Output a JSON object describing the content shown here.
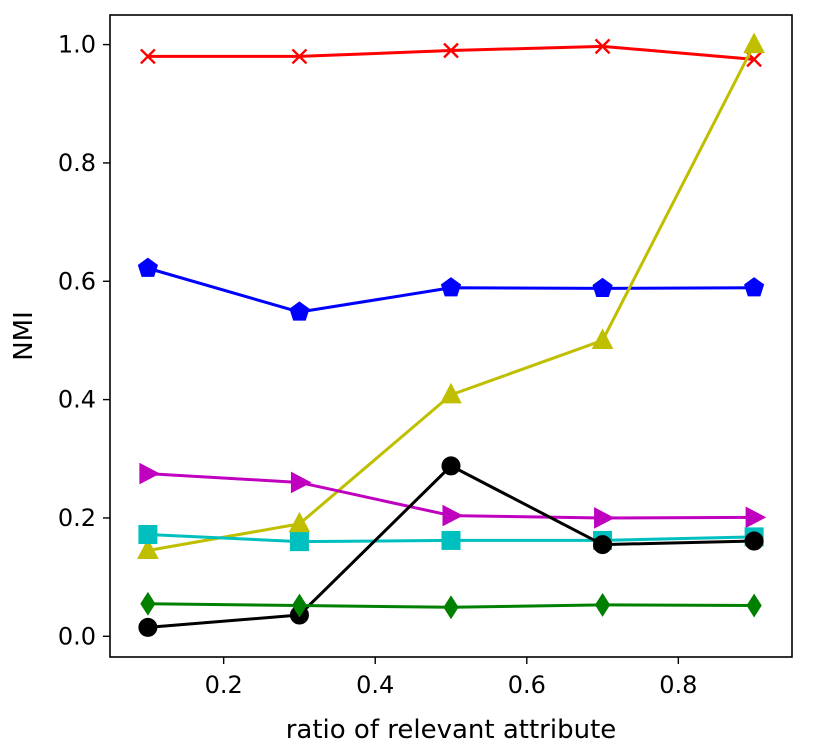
{
  "chart_data": {
    "type": "line",
    "title": "",
    "xlabel": "ratio of relevant attribute",
    "ylabel": "NMI",
    "xlim": [
      0.05,
      0.95
    ],
    "ylim": [
      -0.035,
      1.05
    ],
    "grid": false,
    "x": [
      0.1,
      0.3,
      0.5,
      0.7,
      0.9
    ],
    "xticks": [
      0.2,
      0.4,
      0.6,
      0.8
    ],
    "xtick_labels": [
      "0.2",
      "0.4",
      "0.6",
      "0.8"
    ],
    "yticks": [
      0.0,
      0.2,
      0.4,
      0.6,
      0.8,
      1.0
    ],
    "ytick_labels": [
      "0.0",
      "0.2",
      "0.4",
      "0.6",
      "0.8",
      "1.0"
    ],
    "series": [
      {
        "name": "red-x",
        "color": "#ff0000",
        "marker": "x",
        "values": [
          0.98,
          0.98,
          0.99,
          0.997,
          0.975
        ]
      },
      {
        "name": "blue-pentagon",
        "color": "#0000ff",
        "marker": "pentagon",
        "values": [
          0.622,
          0.548,
          0.589,
          0.588,
          0.589
        ]
      },
      {
        "name": "yellow-triangle-up",
        "color": "#bfbf00",
        "marker": "triangle-up",
        "values": [
          0.145,
          0.19,
          0.408,
          0.5,
          1.0
        ]
      },
      {
        "name": "magenta-triangle-right",
        "color": "#bf00bf",
        "marker": "triangle-right",
        "values": [
          0.275,
          0.26,
          0.204,
          0.2,
          0.201
        ]
      },
      {
        "name": "cyan-square",
        "color": "#00bfbf",
        "marker": "square",
        "values": [
          0.172,
          0.16,
          0.162,
          0.162,
          0.168
        ]
      },
      {
        "name": "black-circle",
        "color": "#000000",
        "marker": "circle",
        "values": [
          0.015,
          0.036,
          0.288,
          0.155,
          0.161
        ]
      },
      {
        "name": "green-diamond",
        "color": "#008000",
        "marker": "diamond",
        "values": [
          0.055,
          0.052,
          0.049,
          0.053,
          0.052
        ]
      }
    ]
  }
}
